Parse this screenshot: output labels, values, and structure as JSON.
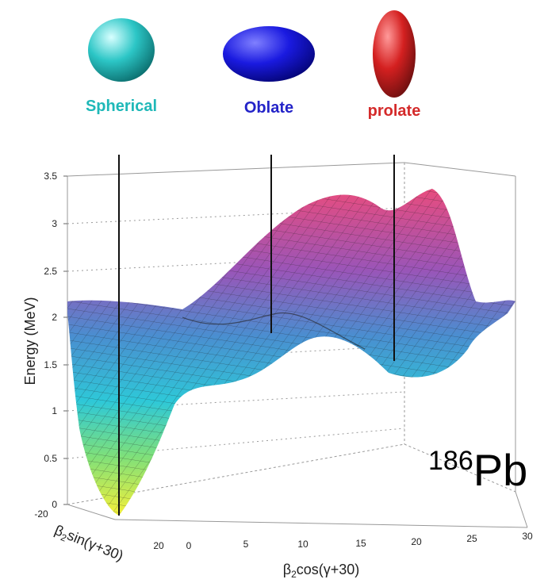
{
  "shapes": [
    {
      "label": "Spherical",
      "color": "#1fb8b8"
    },
    {
      "label": "Oblate",
      "color": "#2323c8"
    },
    {
      "label": "prolate",
      "color": "#d42a2a"
    }
  ],
  "z_axis": {
    "label": "Energy (MeV)",
    "ticks": [
      "3.5",
      "3",
      "2.5",
      "2",
      "1.5",
      "1",
      "0.5",
      "0"
    ]
  },
  "x_axis": {
    "symbol": "β",
    "subscript": "2",
    "rest": "cos(γ+30)",
    "ticks": [
      "0",
      "5",
      "10",
      "15",
      "20",
      "25",
      "30"
    ]
  },
  "y_axis": {
    "symbol": "β",
    "subscript": "2",
    "rest": "sin(γ+30)",
    "ticks": [
      "-20",
      "20"
    ]
  },
  "nucleus": {
    "mass_number": "186",
    "element": "Pb"
  }
}
